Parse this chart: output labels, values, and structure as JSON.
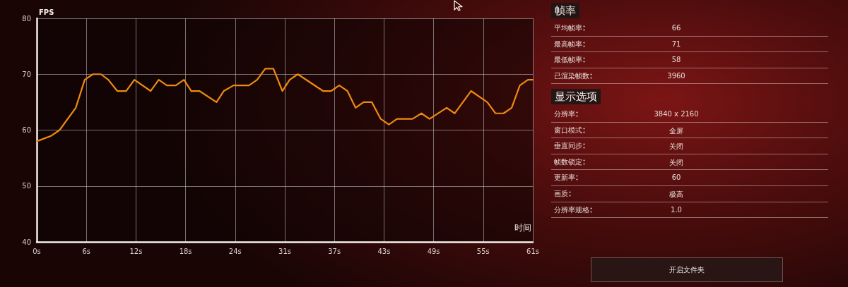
{
  "chart_data": [
    {
      "type": "line",
      "xlabel": "时间",
      "ylabel": "FPS",
      "xlim": [
        0,
        61
      ],
      "ylim": [
        40,
        80
      ],
      "xticks": [
        {
          "value": 0,
          "label": "0s"
        },
        {
          "value": 6.1,
          "label": "6s"
        },
        {
          "value": 12.2,
          "label": "12s"
        },
        {
          "value": 18.3,
          "label": "18s"
        },
        {
          "value": 24.4,
          "label": "24s"
        },
        {
          "value": 30.5,
          "label": "31s"
        },
        {
          "value": 36.6,
          "label": "37s"
        },
        {
          "value": 42.7,
          "label": "43s"
        },
        {
          "value": 48.8,
          "label": "49s"
        },
        {
          "value": 54.9,
          "label": "55s"
        },
        {
          "value": 61,
          "label": "61s"
        }
      ],
      "yticks": [
        40,
        50,
        60,
        70,
        80
      ],
      "grid": true,
      "marker": "none",
      "line_style": "solid",
      "series": [
        {
          "color": "#ef8a10",
          "x": [
            0,
            1.8,
            2.8,
            4.8,
            5.9,
            6.9,
            7.9,
            8.8,
            9.9,
            11,
            12,
            14,
            15,
            16,
            17.1,
            18.1,
            19,
            20,
            22.1,
            23,
            24.2,
            26.1,
            27.1,
            28.1,
            29.1,
            30.2,
            31.1,
            32.1,
            35.2,
            36.2,
            37.2,
            38.2,
            39.2,
            40.2,
            41.2,
            42.3,
            43.3,
            44.3,
            46.2,
            47.3,
            48.3,
            50.4,
            51.4,
            53.4,
            55.4,
            56.4,
            57.4,
            58.4,
            59.4,
            60.4,
            61
          ],
          "values": [
            58,
            59,
            60,
            64,
            69,
            70,
            70,
            69,
            67,
            67,
            69,
            67,
            69,
            68,
            68,
            69,
            67,
            67,
            65,
            67,
            68,
            68,
            69,
            71,
            71,
            67,
            69,
            70,
            67,
            67,
            68,
            67,
            64,
            65,
            65,
            62,
            61,
            62,
            62,
            63,
            62,
            64,
            63,
            67,
            65,
            63,
            63,
            64,
            68,
            69,
            69
          ]
        }
      ]
    },
    {
      "type": "other",
      "title": "帧率",
      "categories": [
        "平均帧率",
        "最高帧率",
        "最低帧率",
        "已渲染帧数"
      ],
      "value_labels": [
        "66",
        "71",
        "58",
        "3960"
      ]
    },
    {
      "type": "other",
      "title": "显示选项",
      "categories": [
        "分辨率",
        "窗口模式",
        "垂直同步",
        "帧数锁定",
        "更新率",
        "画质",
        "分辨率规格"
      ],
      "value_labels": [
        "3840 x 2160",
        "全屏",
        "关闭",
        "关闭",
        "60",
        "极高",
        "1.0"
      ],
      "annotations": [
        "开启文件夹"
      ]
    }
  ]
}
